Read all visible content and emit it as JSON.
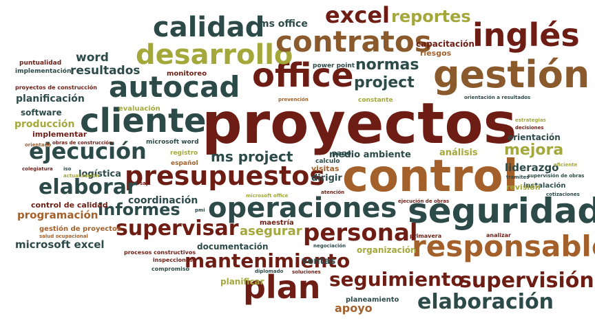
{
  "cloud": {
    "palette": {
      "dark_teal": "#2c4a48",
      "dark_red": "#6e1d14",
      "brown": "#8a5a2c",
      "olive": "#a4a83a",
      "rust": "#a4602a",
      "gray_brown": "#8a7a5c"
    },
    "words": [
      {
        "text": "proyectos",
        "color": "#6e1d14"
      },
      {
        "text": "control",
        "color": "#a4602a"
      },
      {
        "text": "gestión",
        "color": "#8a5a2c"
      },
      {
        "text": "seguridad",
        "color": "#2c4a48"
      },
      {
        "text": "responsable",
        "color": "#a4602a"
      },
      {
        "text": "cliente",
        "color": "#2c4a48"
      },
      {
        "text": "office",
        "color": "#6e1d14"
      },
      {
        "text": "presupuestos",
        "color": "#6e1d14"
      },
      {
        "text": "autocad",
        "color": "#2c4a48"
      },
      {
        "text": "desarrollo",
        "color": "#a4a83a"
      },
      {
        "text": "inglés",
        "color": "#6e1d14"
      },
      {
        "text": "contratos",
        "color": "#8a5a2c"
      },
      {
        "text": "calidad",
        "color": "#2c4a48"
      },
      {
        "text": "excel",
        "color": "#6e1d14"
      },
      {
        "text": "reportes",
        "color": "#a4a83a"
      },
      {
        "text": "ms office",
        "color": "#2c4a48"
      },
      {
        "text": "operaciones",
        "color": "#2c4a48"
      },
      {
        "text": "plan",
        "color": "#6e1d14"
      },
      {
        "text": "personal",
        "color": "#6e1d14"
      },
      {
        "text": "supervisión",
        "color": "#6e1d14"
      },
      {
        "text": "elaboración",
        "color": "#2c4a48"
      },
      {
        "text": "seguimiento",
        "color": "#6e1d14"
      },
      {
        "text": "mantenimiento",
        "color": "#6e1d14"
      },
      {
        "text": "supervisar",
        "color": "#6e1d14"
      },
      {
        "text": "elaborar",
        "color": "#2c4a48"
      },
      {
        "text": "ejecución",
        "color": "#2c4a48"
      },
      {
        "text": "informes",
        "color": "#2c4a48"
      },
      {
        "text": "normas",
        "color": "#2c4a48"
      },
      {
        "text": "project",
        "color": "#2c4a48"
      },
      {
        "text": "ms project",
        "color": "#2c4a48"
      },
      {
        "text": "medio ambiente",
        "color": "#2c4a48"
      },
      {
        "text": "mejora",
        "color": "#a4a83a"
      },
      {
        "text": "análisis",
        "color": "#a4a83a"
      },
      {
        "text": "liderazgo",
        "color": "#2c4a48"
      },
      {
        "text": "orientación",
        "color": "#2c4a48"
      },
      {
        "text": "producción",
        "color": "#a4a83a"
      },
      {
        "text": "planificación",
        "color": "#2c4a48"
      },
      {
        "text": "software",
        "color": "#2c4a48"
      },
      {
        "text": "implementar",
        "color": "#6e1d14"
      },
      {
        "text": "word",
        "color": "#2c4a48"
      },
      {
        "text": "resultados",
        "color": "#2c4a48"
      },
      {
        "text": "capacitación",
        "color": "#6e1d14"
      },
      {
        "text": "riesgos",
        "color": "#a4602a"
      },
      {
        "text": "logística",
        "color": "#2c4a48"
      },
      {
        "text": "coordinación",
        "color": "#2c4a48"
      },
      {
        "text": "programación",
        "color": "#a4602a"
      },
      {
        "text": "microsoft excel",
        "color": "#2c4a48"
      },
      {
        "text": "asegurar",
        "color": "#a4a83a"
      },
      {
        "text": "documentación",
        "color": "#2c4a48"
      },
      {
        "text": "ventas",
        "color": "#2c4a48"
      },
      {
        "text": "apoyo",
        "color": "#a4602a"
      },
      {
        "text": "planificar",
        "color": "#a4a83a"
      },
      {
        "text": "organización",
        "color": "#a4a83a"
      },
      {
        "text": "planeamiento",
        "color": "#2c4a48"
      },
      {
        "text": "dirigir",
        "color": "#2c4a48"
      },
      {
        "text": "visitas",
        "color": "#a4602a"
      },
      {
        "text": "pago",
        "color": "#2c4a48"
      },
      {
        "text": "instalación",
        "color": "#2c4a48"
      },
      {
        "text": "revisión",
        "color": "#a4a83a"
      },
      {
        "text": "maestría",
        "color": "#6e1d14"
      },
      {
        "text": "control de calidad",
        "color": "#6e1d14"
      },
      {
        "text": "gestión de proyectos",
        "color": "#a4602a"
      },
      {
        "text": "monitoreo",
        "color": "#6e1d14"
      },
      {
        "text": "evaluación",
        "color": "#a4a83a"
      },
      {
        "text": "power point",
        "color": "#2c4a48"
      },
      {
        "text": "calculo",
        "color": "#2c4a48"
      },
      {
        "text": "constante",
        "color": "#a4a83a"
      },
      {
        "text": "prevención",
        "color": "#a4602a"
      },
      {
        "text": "puntualidad",
        "color": "#6e1d14"
      },
      {
        "text": "implementación",
        "color": "#2c4a48"
      },
      {
        "text": "proyectos de construcción",
        "color": "#6e1d14"
      },
      {
        "text": "orientado",
        "color": "#a4602a"
      },
      {
        "text": "obras de construcción",
        "color": "#6e1d14"
      },
      {
        "text": "microsoft word",
        "color": "#2c4a48"
      },
      {
        "text": "registro",
        "color": "#a4a83a"
      },
      {
        "text": "español",
        "color": "#a4602a"
      },
      {
        "text": "colegiatura",
        "color": "#6e1d14"
      },
      {
        "text": "iso",
        "color": "#2c4a48"
      },
      {
        "text": "actualización",
        "color": "#a4a83a"
      },
      {
        "text": "sap",
        "color": "#6e1d14"
      },
      {
        "text": "pmi",
        "color": "#2c4a48"
      },
      {
        "text": "salud ocupacional",
        "color": "#a4602a"
      },
      {
        "text": "procesos constructivos",
        "color": "#6e1d14"
      },
      {
        "text": "inspecciones",
        "color": "#6e1d14"
      },
      {
        "text": "compromiso",
        "color": "#2c4a48"
      },
      {
        "text": "diplomado",
        "color": "#2c4a48"
      },
      {
        "text": "soluciones",
        "color": "#6e1d14"
      },
      {
        "text": "negociación",
        "color": "#2c4a48"
      },
      {
        "text": "atención",
        "color": "#6e1d14"
      },
      {
        "text": "ejecución de obras",
        "color": "#6e1d14"
      },
      {
        "text": "microsoft office",
        "color": "#a4a83a"
      },
      {
        "text": "primavera",
        "color": "#6e1d14"
      },
      {
        "text": "analizar",
        "color": "#6e1d14"
      },
      {
        "text": "cotizaciones",
        "color": "#2c4a48"
      },
      {
        "text": "supervisión de obras",
        "color": "#2c4a48"
      },
      {
        "text": "tramites",
        "color": "#2c4a48"
      },
      {
        "text": "eficiente",
        "color": "#a4a83a"
      },
      {
        "text": "decisiones",
        "color": "#6e1d14"
      },
      {
        "text": "estrategias",
        "color": "#a4a83a"
      },
      {
        "text": "orientación a resultados",
        "color": "#2c4a48"
      }
    ]
  }
}
